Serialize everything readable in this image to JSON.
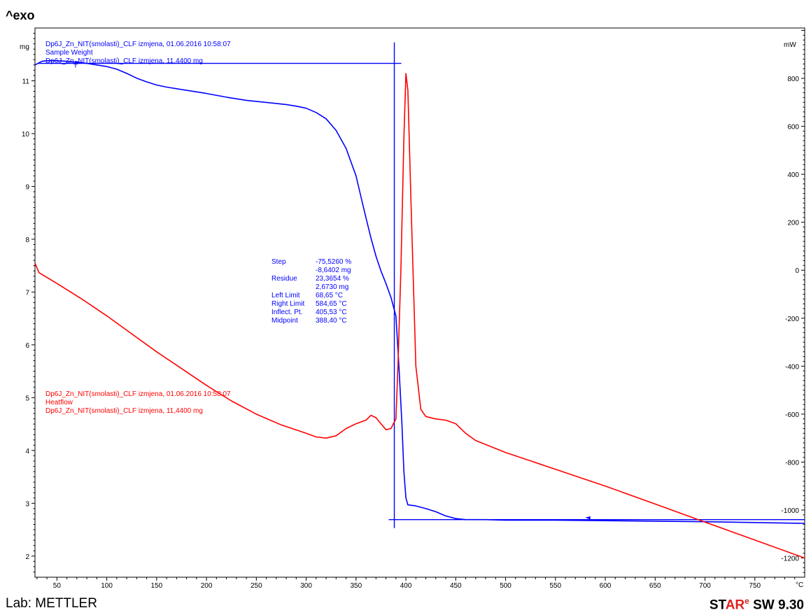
{
  "header": {
    "exo_label": "^exo"
  },
  "footer": {
    "lab": "Lab: METTLER",
    "brand_prefix": "ST",
    "brand_red": "AR",
    "brand_sup": "e",
    "brand_suffix": " SW 9.30"
  },
  "chart_data": {
    "type": "line",
    "x_unit": "°C",
    "y_left_unit": "mg",
    "y_right_unit": "mW",
    "xlim": [
      28,
      800
    ],
    "ylim_left": [
      1.6,
      12.0
    ],
    "ylim_right": [
      -1280,
      1010
    ],
    "x_ticks": [
      50,
      100,
      150,
      200,
      250,
      300,
      350,
      400,
      450,
      500,
      550,
      600,
      650,
      700,
      750
    ],
    "y_left_ticks": [
      2,
      3,
      4,
      5,
      6,
      7,
      8,
      9,
      10,
      11
    ],
    "y_right_ticks": [
      -1200,
      -1000,
      -800,
      -600,
      -400,
      -200,
      0,
      200,
      400,
      600,
      800
    ],
    "colors": {
      "weight": "#0000ff",
      "heatflow": "#ff0000",
      "frame": "#000000"
    },
    "series": [
      {
        "name": "Sample Weight",
        "axis": "left",
        "color": "#0000ff",
        "legend_lines": [
          "Dp6J_Zn_NIT(smolasti)_CLF izmjena, 01.06.2016 10:58:07",
          "Sample Weight",
          "Dp6J_Zn_NIT(smolasti)_CLF izmjena, 11,4400 mg"
        ],
        "points": [
          [
            28,
            11.3
          ],
          [
            35,
            11.37
          ],
          [
            40,
            11.38
          ],
          [
            50,
            11.38
          ],
          [
            60,
            11.37
          ],
          [
            70,
            11.35
          ],
          [
            80,
            11.33
          ],
          [
            90,
            11.3
          ],
          [
            100,
            11.27
          ],
          [
            110,
            11.22
          ],
          [
            120,
            11.14
          ],
          [
            130,
            11.05
          ],
          [
            140,
            10.98
          ],
          [
            150,
            10.92
          ],
          [
            160,
            10.88
          ],
          [
            180,
            10.82
          ],
          [
            200,
            10.76
          ],
          [
            220,
            10.69
          ],
          [
            240,
            10.63
          ],
          [
            260,
            10.59
          ],
          [
            280,
            10.55
          ],
          [
            290,
            10.52
          ],
          [
            300,
            10.48
          ],
          [
            310,
            10.4
          ],
          [
            320,
            10.28
          ],
          [
            330,
            10.06
          ],
          [
            340,
            9.72
          ],
          [
            350,
            9.2
          ],
          [
            355,
            8.8
          ],
          [
            360,
            8.4
          ],
          [
            365,
            8.02
          ],
          [
            370,
            7.68
          ],
          [
            375,
            7.4
          ],
          [
            380,
            7.16
          ],
          [
            385,
            6.9
          ],
          [
            390,
            6.55
          ],
          [
            393,
            5.6
          ],
          [
            396,
            4.5
          ],
          [
            398,
            3.6
          ],
          [
            400,
            3.1
          ],
          [
            402,
            2.97
          ],
          [
            410,
            2.95
          ],
          [
            420,
            2.9
          ],
          [
            430,
            2.84
          ],
          [
            440,
            2.76
          ],
          [
            450,
            2.71
          ],
          [
            460,
            2.69
          ],
          [
            480,
            2.69
          ],
          [
            500,
            2.68
          ],
          [
            550,
            2.68
          ],
          [
            600,
            2.67
          ],
          [
            700,
            2.65
          ],
          [
            800,
            2.62
          ]
        ]
      },
      {
        "name": "Heatflow",
        "axis": "right",
        "color": "#ff0000",
        "legend_lines": [
          "Dp6J_Zn_NIT(smolasti)_CLF izmjena, 01.06.2016 10:58:07",
          "Heatflow",
          "Dp6J_Zn_NIT(smolasti)_CLF izmjena, 11,4400 mg"
        ],
        "points": [
          [
            28,
            30
          ],
          [
            32,
            -10
          ],
          [
            50,
            -55
          ],
          [
            75,
            -120
          ],
          [
            100,
            -190
          ],
          [
            125,
            -265
          ],
          [
            150,
            -340
          ],
          [
            175,
            -410
          ],
          [
            200,
            -480
          ],
          [
            225,
            -545
          ],
          [
            250,
            -600
          ],
          [
            275,
            -645
          ],
          [
            300,
            -680
          ],
          [
            310,
            -695
          ],
          [
            320,
            -700
          ],
          [
            330,
            -690
          ],
          [
            340,
            -660
          ],
          [
            350,
            -640
          ],
          [
            360,
            -625
          ],
          [
            365,
            -605
          ],
          [
            370,
            -615
          ],
          [
            375,
            -640
          ],
          [
            380,
            -665
          ],
          [
            385,
            -660
          ],
          [
            390,
            -620
          ],
          [
            392,
            -400
          ],
          [
            395,
            0
          ],
          [
            398,
            550
          ],
          [
            400,
            820
          ],
          [
            402,
            750
          ],
          [
            405,
            300
          ],
          [
            410,
            -400
          ],
          [
            415,
            -580
          ],
          [
            420,
            -610
          ],
          [
            430,
            -620
          ],
          [
            440,
            -625
          ],
          [
            450,
            -640
          ],
          [
            460,
            -680
          ],
          [
            470,
            -710
          ],
          [
            500,
            -760
          ],
          [
            550,
            -830
          ],
          [
            600,
            -900
          ],
          [
            650,
            -975
          ],
          [
            700,
            -1050
          ],
          [
            750,
            -1125
          ],
          [
            800,
            -1200
          ]
        ]
      }
    ],
    "evaluation": {
      "labels": [
        "Step",
        "",
        "Residue",
        "",
        "Left Limit",
        "Right Limit",
        "Inflect. Pt.",
        "Midpoint"
      ],
      "values": [
        "-75,5260 %",
        "-8,6402 mg",
        "23,3654 %",
        "2,6730 mg",
        "68,65 °C",
        "584,65 °C",
        "405,53 °C",
        "388,40 °C"
      ],
      "upper_level_mg": 11.33,
      "lower_level_mg": 2.69,
      "midpoint_c": 388.4,
      "left_limit_c": 68.65,
      "right_limit_c": 584.65
    }
  }
}
